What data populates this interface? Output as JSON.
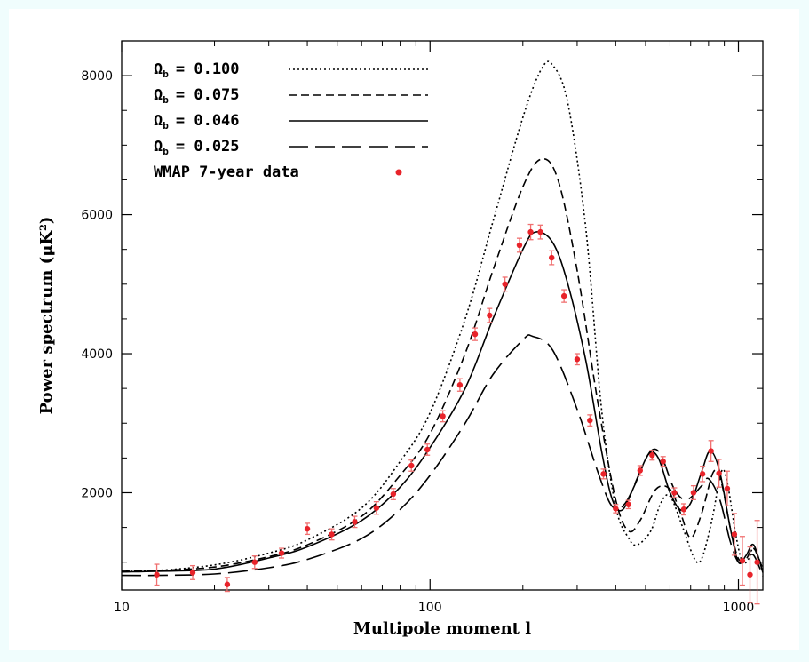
{
  "chart_data": {
    "type": "line",
    "xlabel": "Multipole moment l",
    "ylabel": "Power spectrum (μK²)",
    "xscale": "log",
    "xlim": [
      10,
      1200
    ],
    "ylim": [
      600,
      8500
    ],
    "x_ticks": [
      {
        "v": 10,
        "label": "10"
      },
      {
        "v": 100,
        "label": "100"
      },
      {
        "v": 1000,
        "label": "1000"
      }
    ],
    "y_ticks": [
      {
        "v": 2000,
        "label": "2000"
      },
      {
        "v": 4000,
        "label": "4000"
      },
      {
        "v": 6000,
        "label": "6000"
      },
      {
        "v": 8000,
        "label": "8000"
      }
    ],
    "legend_position": "top-left",
    "series": [
      {
        "name": "Ωb = 0.100",
        "label_sym": "Ωb",
        "label_val": "= 0.100",
        "dash": "2,3",
        "points": [
          [
            10,
            870
          ],
          [
            13,
            880
          ],
          [
            20,
            960
          ],
          [
            30,
            1130
          ],
          [
            40,
            1320
          ],
          [
            60,
            1780
          ],
          [
            80,
            2450
          ],
          [
            100,
            3150
          ],
          [
            130,
            4500
          ],
          [
            160,
            5900
          ],
          [
            200,
            7400
          ],
          [
            230,
            8100
          ],
          [
            250,
            8150
          ],
          [
            280,
            7600
          ],
          [
            320,
            5800
          ],
          [
            360,
            3200
          ],
          [
            400,
            1800
          ],
          [
            440,
            1350
          ],
          [
            470,
            1250
          ],
          [
            520,
            1450
          ],
          [
            560,
            1850
          ],
          [
            600,
            1950
          ],
          [
            660,
            1500
          ],
          [
            720,
            1050
          ],
          [
            760,
            1050
          ],
          [
            820,
            1600
          ],
          [
            880,
            2300
          ],
          [
            920,
            2150
          ],
          [
            980,
            1400
          ],
          [
            1030,
            1000
          ],
          [
            1080,
            1050
          ],
          [
            1120,
            1200
          ],
          [
            1200,
            900
          ]
        ]
      },
      {
        "name": "Ωb = 0.075",
        "label_sym": "Ωb",
        "label_val": "= 0.075",
        "dash": "9,5",
        "points": [
          [
            10,
            870
          ],
          [
            13,
            880
          ],
          [
            20,
            930
          ],
          [
            30,
            1080
          ],
          [
            40,
            1250
          ],
          [
            60,
            1660
          ],
          [
            80,
            2250
          ],
          [
            100,
            2850
          ],
          [
            130,
            4000
          ],
          [
            160,
            5200
          ],
          [
            200,
            6400
          ],
          [
            230,
            6800
          ],
          [
            260,
            6500
          ],
          [
            300,
            5200
          ],
          [
            350,
            3300
          ],
          [
            400,
            1900
          ],
          [
            440,
            1450
          ],
          [
            480,
            1600
          ],
          [
            540,
            2050
          ],
          [
            600,
            2050
          ],
          [
            650,
            1700
          ],
          [
            700,
            1350
          ],
          [
            760,
            1700
          ],
          [
            830,
            2300
          ],
          [
            880,
            2150
          ],
          [
            940,
            1500
          ],
          [
            1000,
            1050
          ],
          [
            1060,
            1050
          ],
          [
            1120,
            1200
          ],
          [
            1200,
            900
          ]
        ]
      },
      {
        "name": "Ωb = 0.046",
        "label_sym": "Ωb",
        "label_val": "= 0.046",
        "dash": "",
        "points": [
          [
            10,
            860
          ],
          [
            13,
            870
          ],
          [
            20,
            900
          ],
          [
            30,
            1060
          ],
          [
            40,
            1220
          ],
          [
            60,
            1600
          ],
          [
            80,
            2080
          ],
          [
            100,
            2650
          ],
          [
            130,
            3500
          ],
          [
            160,
            4500
          ],
          [
            200,
            5500
          ],
          [
            220,
            5750
          ],
          [
            250,
            5600
          ],
          [
            280,
            5000
          ],
          [
            320,
            3900
          ],
          [
            360,
            2600
          ],
          [
            390,
            1900
          ],
          [
            420,
            1750
          ],
          [
            460,
            2100
          ],
          [
            510,
            2550
          ],
          [
            550,
            2500
          ],
          [
            600,
            2000
          ],
          [
            650,
            1750
          ],
          [
            700,
            1850
          ],
          [
            760,
            2300
          ],
          [
            810,
            2600
          ],
          [
            870,
            2300
          ],
          [
            940,
            1500
          ],
          [
            1000,
            1000
          ],
          [
            1060,
            1100
          ],
          [
            1120,
            1250
          ],
          [
            1200,
            850
          ]
        ]
      },
      {
        "name": "Ωb = 0.025",
        "label_sym": "Ωb",
        "label_val": "= 0.025",
        "dash": "22,8",
        "points": [
          [
            10,
            810
          ],
          [
            13,
            810
          ],
          [
            20,
            830
          ],
          [
            30,
            920
          ],
          [
            40,
            1040
          ],
          [
            60,
            1340
          ],
          [
            80,
            1760
          ],
          [
            100,
            2250
          ],
          [
            130,
            3000
          ],
          [
            160,
            3700
          ],
          [
            200,
            4200
          ],
          [
            215,
            4250
          ],
          [
            250,
            4050
          ],
          [
            300,
            3200
          ],
          [
            350,
            2300
          ],
          [
            390,
            1800
          ],
          [
            430,
            1850
          ],
          [
            480,
            2300
          ],
          [
            520,
            2600
          ],
          [
            560,
            2550
          ],
          [
            620,
            2050
          ],
          [
            680,
            1900
          ],
          [
            760,
            2100
          ],
          [
            800,
            2200
          ],
          [
            870,
            1900
          ],
          [
            940,
            1300
          ],
          [
            1000,
            1000
          ],
          [
            1060,
            1050
          ],
          [
            1120,
            1100
          ],
          [
            1200,
            800
          ]
        ]
      }
    ],
    "data_series": {
      "name": "WMAP 7-year data",
      "color": "#e8232a",
      "points": [
        {
          "x": 13,
          "y": 820,
          "e": 150
        },
        {
          "x": 17,
          "y": 850,
          "e": 100
        },
        {
          "x": 22,
          "y": 680,
          "e": 100
        },
        {
          "x": 27,
          "y": 1000,
          "e": 90
        },
        {
          "x": 33,
          "y": 1130,
          "e": 70
        },
        {
          "x": 40,
          "y": 1480,
          "e": 80
        },
        {
          "x": 48,
          "y": 1400,
          "e": 80
        },
        {
          "x": 57,
          "y": 1580,
          "e": 80
        },
        {
          "x": 67,
          "y": 1780,
          "e": 90
        },
        {
          "x": 76,
          "y": 1980,
          "e": 80
        },
        {
          "x": 87,
          "y": 2390,
          "e": 80
        },
        {
          "x": 98,
          "y": 2620,
          "e": 80
        },
        {
          "x": 110,
          "y": 3100,
          "e": 80
        },
        {
          "x": 125,
          "y": 3550,
          "e": 90
        },
        {
          "x": 140,
          "y": 4280,
          "e": 90
        },
        {
          "x": 156,
          "y": 4550,
          "e": 100
        },
        {
          "x": 175,
          "y": 5000,
          "e": 100
        },
        {
          "x": 195,
          "y": 5560,
          "e": 100
        },
        {
          "x": 212,
          "y": 5750,
          "e": 110
        },
        {
          "x": 228,
          "y": 5750,
          "e": 100
        },
        {
          "x": 248,
          "y": 5380,
          "e": 100
        },
        {
          "x": 272,
          "y": 4830,
          "e": 90
        },
        {
          "x": 300,
          "y": 3920,
          "e": 80
        },
        {
          "x": 330,
          "y": 3040,
          "e": 80
        },
        {
          "x": 365,
          "y": 2270,
          "e": 70
        },
        {
          "x": 400,
          "y": 1770,
          "e": 60
        },
        {
          "x": 440,
          "y": 1830,
          "e": 60
        },
        {
          "x": 480,
          "y": 2320,
          "e": 70
        },
        {
          "x": 525,
          "y": 2540,
          "e": 70
        },
        {
          "x": 570,
          "y": 2450,
          "e": 70
        },
        {
          "x": 620,
          "y": 2000,
          "e": 70
        },
        {
          "x": 665,
          "y": 1760,
          "e": 80
        },
        {
          "x": 715,
          "y": 2000,
          "e": 100
        },
        {
          "x": 765,
          "y": 2270,
          "e": 110
        },
        {
          "x": 815,
          "y": 2600,
          "e": 150
        },
        {
          "x": 865,
          "y": 2280,
          "e": 200
        },
        {
          "x": 920,
          "y": 2060,
          "e": 250
        },
        {
          "x": 970,
          "y": 1400,
          "e": 300
        },
        {
          "x": 1030,
          "y": 1020,
          "e": 350
        },
        {
          "x": 1090,
          "y": 820,
          "e": 400
        },
        {
          "x": 1150,
          "y": 1000,
          "e": 600
        }
      ]
    }
  }
}
